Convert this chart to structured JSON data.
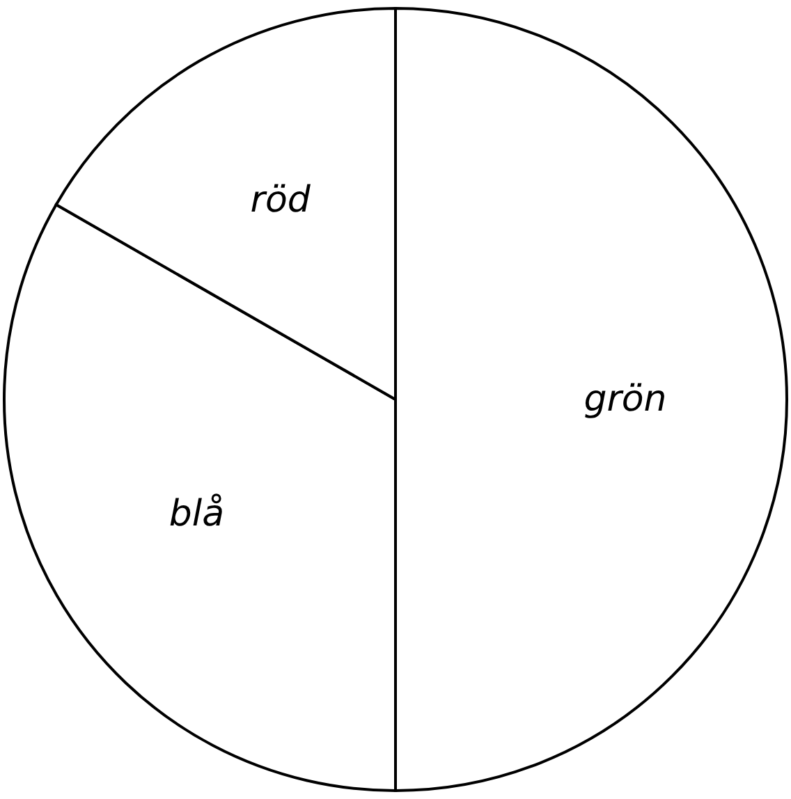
{
  "chart_data": {
    "type": "pie",
    "categories": [
      "grön",
      "blå",
      "röd"
    ],
    "values": [
      50,
      33.3,
      16.7
    ],
    "colors": [
      "#ffffff",
      "#ffffff",
      "#ffffff"
    ]
  }
}
